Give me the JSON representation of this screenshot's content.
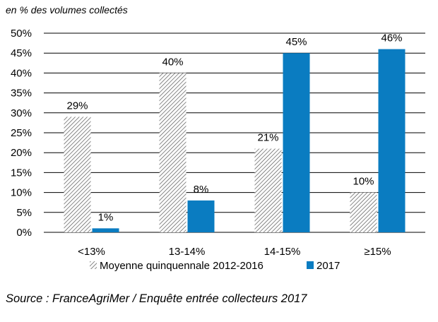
{
  "unit_note": "en % des volumes collectés",
  "source": "Source : FranceAgriMer / Enquête entrée collecteurs 2017",
  "chart_data": {
    "type": "bar",
    "categories": [
      "<13%",
      "13-14%",
      "14-15%",
      "≥15%"
    ],
    "series": [
      {
        "name": "Moyenne quinquennale 2012-2016",
        "values": [
          29,
          40,
          21,
          10
        ],
        "labels": [
          "29%",
          "40%",
          "21%",
          "10%"
        ],
        "fill": "hatched",
        "color": "#555555"
      },
      {
        "name": "2017",
        "values": [
          1,
          8,
          45,
          46
        ],
        "labels": [
          "1%",
          "8%",
          "45%",
          "46%"
        ],
        "fill": "solid",
        "color": "#0a7cc1"
      }
    ],
    "ylim": [
      0,
      50
    ],
    "yticks": [
      0,
      5,
      10,
      15,
      20,
      25,
      30,
      35,
      40,
      45,
      50
    ],
    "ytick_labels": [
      "0%",
      "5%",
      "10%",
      "15%",
      "20%",
      "25%",
      "30%",
      "35%",
      "40%",
      "45%",
      "50%"
    ],
    "grid": true,
    "legend_position": "bottom"
  }
}
